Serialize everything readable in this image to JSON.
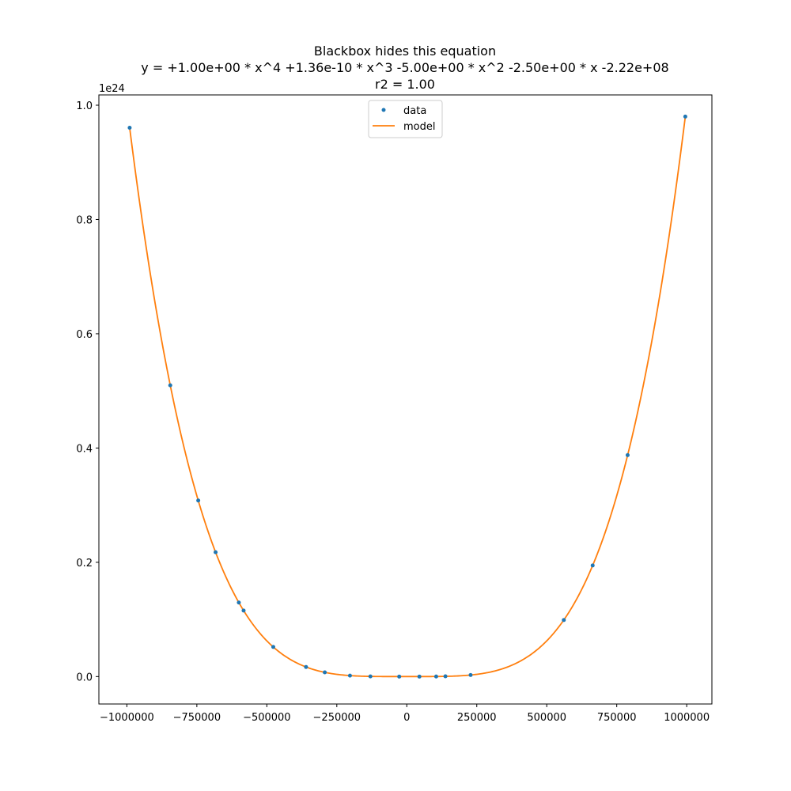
{
  "chart_data": {
    "type": "scatter",
    "title_lines": [
      "Blackbox hides this equation",
      "y = +1.00e+00 * x^4 +1.36e-10 * x^3 -5.00e+00 * x^2 -2.50e+00 * x -2.22e+08",
      "r2 = 1.00"
    ],
    "xlabel": "",
    "ylabel": "",
    "y_offset_label": "1e24",
    "xlim": [
      -1100000,
      1090000
    ],
    "ylim": [
      -0.048,
      1.018
    ],
    "x_ticks": [
      -1000000,
      -750000,
      -500000,
      -250000,
      0,
      250000,
      500000,
      750000,
      1000000
    ],
    "x_tick_labels": [
      "−1000000",
      "−750000",
      "−500000",
      "−250000",
      "0",
      "250000",
      "500000",
      "750000",
      "1000000"
    ],
    "y_ticks": [
      0.0,
      0.2,
      0.4,
      0.6,
      0.8,
      1.0
    ],
    "y_tick_labels": [
      "0.0",
      "0.2",
      "0.4",
      "0.6",
      "0.8",
      "1.0"
    ],
    "grid": false,
    "legend": {
      "placement": "upper center",
      "entries": [
        "data",
        "model"
      ]
    },
    "colors": {
      "data": "#1f77b4",
      "model": "#ff7f0e"
    },
    "model": {
      "name": "model",
      "equation_coefficients": {
        "x4": 1.0,
        "x3": 1.36e-10,
        "x2": -5.0,
        "x1": -2.5,
        "x0": -222000000
      },
      "x_range": [
        -990000,
        995000
      ],
      "unit_scale": 1e+24
    },
    "series": [
      {
        "name": "data",
        "x": [
          -990000,
          -845000,
          -745000,
          -683000,
          -600000,
          -583000,
          -477000,
          -360000,
          -293000,
          -203000,
          -130000,
          -27000,
          45000,
          105000,
          138000,
          228000,
          561000,
          664000,
          789000,
          995000
        ],
        "y": [
          0.9606,
          0.5098,
          0.3081,
          0.2176,
          0.1296,
          0.1155,
          0.0518,
          0.0168,
          0.0074,
          0.0017,
          0.0003,
          0.0,
          0.0,
          0.0001,
          0.0004,
          0.0027,
          0.099,
          0.1944,
          0.3876,
          0.9801
        ]
      }
    ]
  }
}
